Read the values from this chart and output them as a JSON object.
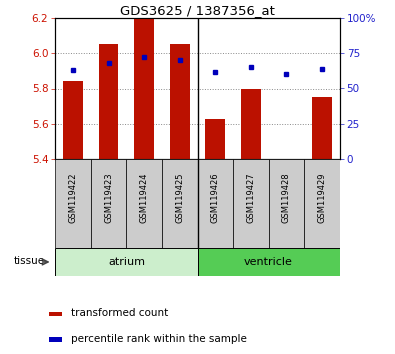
{
  "title": "GDS3625 / 1387356_at",
  "samples": [
    "GSM119422",
    "GSM119423",
    "GSM119424",
    "GSM119425",
    "GSM119426",
    "GSM119427",
    "GSM119428",
    "GSM119429"
  ],
  "transformed_counts": [
    5.84,
    6.05,
    6.19,
    6.05,
    5.63,
    5.8,
    5.4,
    5.75
  ],
  "percentile_ranks": [
    63,
    68,
    72,
    70,
    62,
    65,
    60,
    64
  ],
  "ylim": [
    5.4,
    6.2
  ],
  "yticks": [
    5.4,
    5.6,
    5.8,
    6.0,
    6.2
  ],
  "right_yticks": [
    0,
    25,
    50,
    75,
    100
  ],
  "right_ytick_labels": [
    "0",
    "25",
    "50",
    "75",
    "100%"
  ],
  "bar_color": "#bb1100",
  "dot_color": "#0000bb",
  "baseline": 5.4,
  "bar_width": 0.55,
  "atrium_color_light": "#cceecc",
  "atrium_color_dark": "#55cc55",
  "sample_box_color": "#cccccc",
  "axis_label_color_left": "#cc1100",
  "axis_label_color_right": "#2222cc",
  "background_color": "#ffffff"
}
